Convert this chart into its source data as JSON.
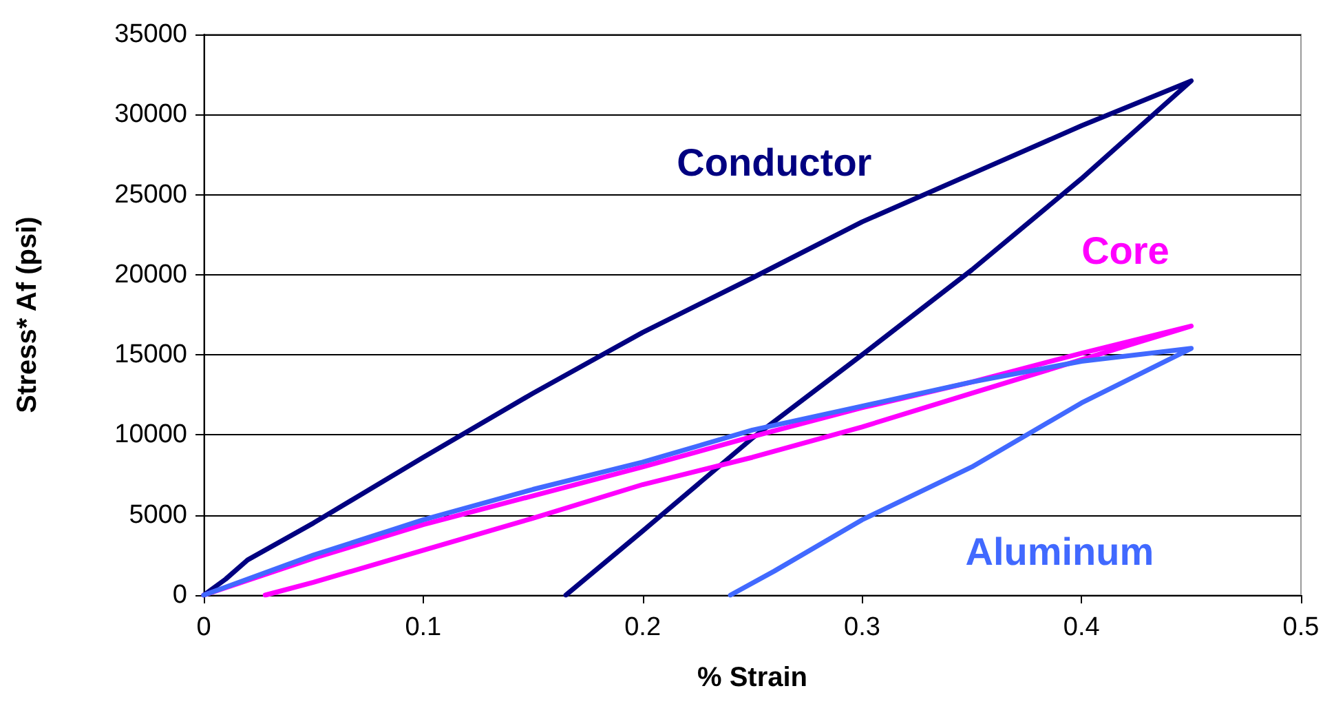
{
  "chart_data": {
    "type": "line",
    "xlabel": "% Strain",
    "ylabel": "Stress* Af (psi)",
    "xlim": [
      0,
      0.5
    ],
    "xticks": [
      0,
      0.1,
      0.2,
      0.3,
      0.4,
      0.5
    ],
    "ylim": [
      0,
      35000
    ],
    "yticks": [
      0,
      5000,
      10000,
      15000,
      20000,
      25000,
      30000,
      35000
    ],
    "grid": "y",
    "legend": false,
    "marker": "none",
    "line_style": "solid",
    "series": [
      {
        "name": "Conductor",
        "color": "#000080",
        "x": [
          0,
          0.01,
          0.02,
          0.05,
          0.1,
          0.15,
          0.2,
          0.25,
          0.3,
          0.35,
          0.4,
          0.45,
          0.4,
          0.35,
          0.3,
          0.25,
          0.2,
          0.165
        ],
        "values": [
          0,
          1000,
          2200,
          4500,
          8600,
          12600,
          16400,
          19800,
          23300,
          26300,
          29300,
          32100,
          26000,
          20300,
          15000,
          9800,
          4000,
          0
        ]
      },
      {
        "name": "Core",
        "color": "#ff00ff",
        "x": [
          0,
          0.05,
          0.1,
          0.15,
          0.2,
          0.25,
          0.3,
          0.35,
          0.4,
          0.45,
          0.4,
          0.35,
          0.3,
          0.25,
          0.2,
          0.15,
          0.1,
          0.05,
          0.028
        ],
        "values": [
          0,
          2300,
          4400,
          6200,
          8000,
          9900,
          11700,
          13300,
          15100,
          16800,
          14700,
          12600,
          10500,
          8600,
          6900,
          4800,
          2800,
          800,
          0
        ]
      },
      {
        "name": "Aluminum",
        "color": "#4169ff",
        "x": [
          0,
          0.05,
          0.1,
          0.15,
          0.2,
          0.25,
          0.3,
          0.35,
          0.4,
          0.45,
          0.4,
          0.35,
          0.3,
          0.26,
          0.24
        ],
        "values": [
          0,
          2500,
          4700,
          6600,
          8300,
          10300,
          11800,
          13300,
          14600,
          15400,
          12000,
          8000,
          4700,
          1500,
          0
        ]
      }
    ]
  }
}
